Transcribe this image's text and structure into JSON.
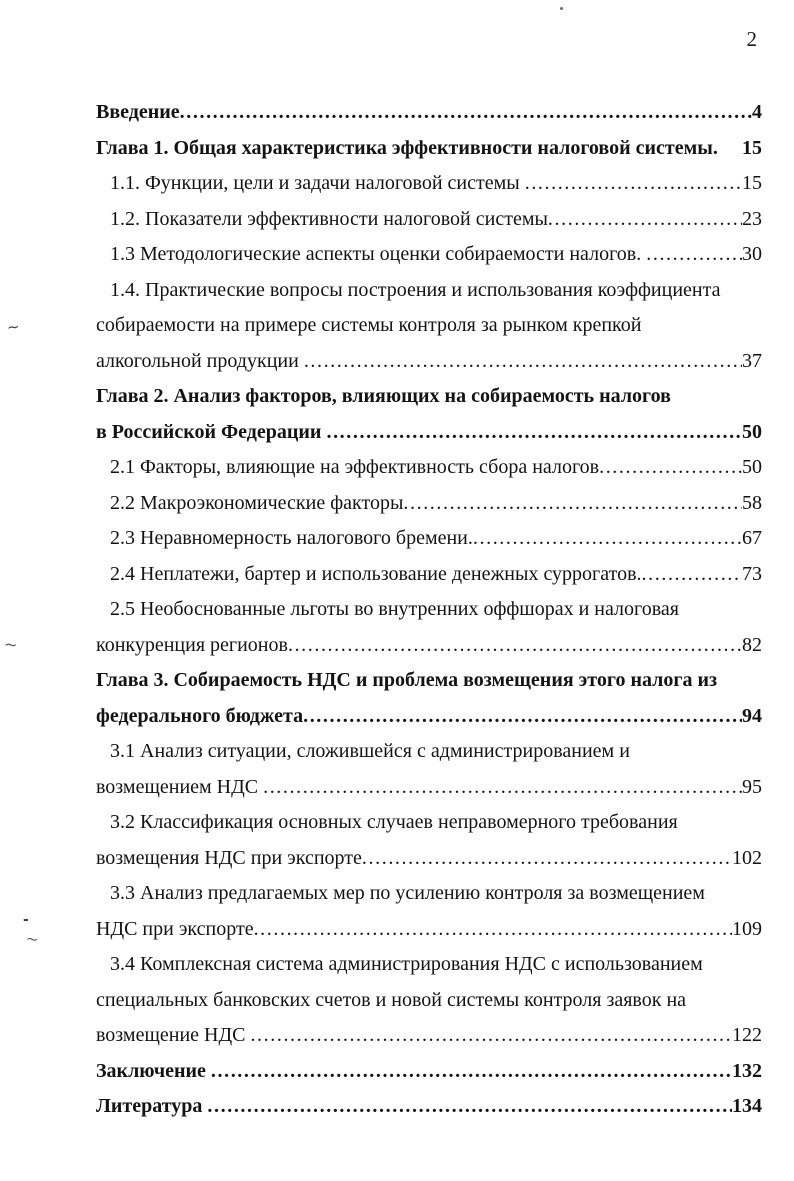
{
  "page": {
    "number": "2"
  },
  "toc": {
    "entries": [
      {
        "bold": true,
        "indent": false,
        "lines": [
          "Введение"
        ],
        "page": "4"
      },
      {
        "bold": true,
        "indent": false,
        "leader": "none",
        "lines": [
          "Глава 1. Общая характеристика эффективности налоговой системы."
        ],
        "page": "15"
      },
      {
        "bold": false,
        "indent": true,
        "lines": [
          "1.1. Функции, цели и задачи налоговой системы "
        ],
        "page": "15"
      },
      {
        "bold": false,
        "indent": true,
        "lines": [
          "1.2. Показатели эффективности налоговой системы"
        ],
        "page": "23"
      },
      {
        "bold": false,
        "indent": true,
        "lines": [
          "1.3 Методологические аспекты оценки собираемости налогов. "
        ],
        "page": "30"
      },
      {
        "bold": false,
        "indent": true,
        "lines": [
          "1.4. Практические вопросы построения и использования коэффициента",
          "собираемости на примере системы контроля за рынком крепкой",
          "алкогольной продукции "
        ],
        "page": "37"
      },
      {
        "bold": true,
        "indent": false,
        "lines": [
          "Глава 2. Анализ факторов, влияющих на собираемость налогов",
          "в Российской Федерации "
        ],
        "page": "50"
      },
      {
        "bold": false,
        "indent": true,
        "lines": [
          "2.1 Факторы, влияющие на эффективность сбора налогов"
        ],
        "page": "50"
      },
      {
        "bold": false,
        "indent": true,
        "lines": [
          "2.2 Макроэкономические факторы"
        ],
        "page": "58"
      },
      {
        "bold": false,
        "indent": true,
        "lines": [
          "2.3 Неравномерность налогового бремени."
        ],
        "page": "67"
      },
      {
        "bold": false,
        "indent": true,
        "lines": [
          "2.4 Неплатежи, бартер и использование денежных суррогатов."
        ],
        "page": "73"
      },
      {
        "bold": false,
        "indent": true,
        "lines": [
          "2.5 Необоснованные льготы во внутренних оффшорах и налоговая",
          "конкуренция регионов"
        ],
        "page": "82"
      },
      {
        "bold": true,
        "indent": false,
        "lines": [
          "Глава 3. Собираемость НДС и проблема возмещения этого налога из",
          "федерального бюджета"
        ],
        "page": "94"
      },
      {
        "bold": false,
        "indent": true,
        "lines": [
          "3.1 Анализ ситуации, сложившейся с администрированием и",
          "возмещением НДС "
        ],
        "page": "95"
      },
      {
        "bold": false,
        "indent": true,
        "lines": [
          "3.2 Классификация основных случаев неправомерного требования",
          "возмещения НДС при экспорте"
        ],
        "page": "102"
      },
      {
        "bold": false,
        "indent": true,
        "lines": [
          "3.3 Анализ предлагаемых мер по усилению контроля за возмещением",
          "НДС при экспорте"
        ],
        "page": "109"
      },
      {
        "bold": false,
        "indent": true,
        "lines": [
          "3.4 Комплексная система администрирования НДС с использованием",
          "специальных банковских счетов и новой системы контроля заявок на",
          "возмещение НДС "
        ],
        "page": "122"
      },
      {
        "bold": true,
        "indent": false,
        "lines": [
          "Заключение "
        ],
        "page": "132"
      },
      {
        "bold": true,
        "indent": false,
        "lines": [
          "Литература "
        ],
        "page": "134"
      }
    ]
  },
  "artifacts": {
    "marks": [
      "~",
      "~",
      "-",
      "~"
    ]
  }
}
